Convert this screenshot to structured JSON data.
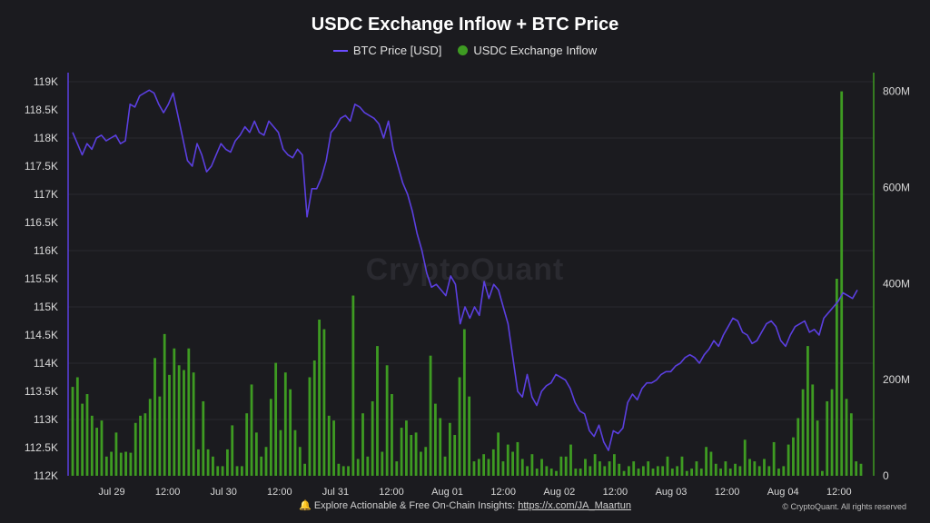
{
  "title": "USDC Exchange Inflow + BTC Price",
  "legend": {
    "line_label": "BTC Price [USD]",
    "bar_label": "USDC Exchange Inflow"
  },
  "watermark": "CryptoQuant",
  "footer": {
    "prefix": "🔔 Explore Actionable & Free On-Chain Insights: ",
    "link": "https://x.com/JA_Maartun"
  },
  "copyright": "© CryptoQuant. All rights reserved",
  "colors": {
    "price": "#5b3fe0",
    "inflow": "#3e9b22",
    "background": "#1b1b1f",
    "grid": "#2a2a2f"
  },
  "chart_data": {
    "type": "bar+line",
    "x_ticks": [
      "Jul 29",
      "12:00",
      "Jul 30",
      "12:00",
      "Jul 31",
      "12:00",
      "Aug 01",
      "12:00",
      "Aug 02",
      "12:00",
      "Aug 03",
      "12:00",
      "Aug 04",
      "12:00"
    ],
    "x_range_hours": [
      0,
      139
    ],
    "left_axis": {
      "label": "BTC Price [USD]",
      "ylim": [
        112000,
        119000
      ],
      "ticks": [
        "112K",
        "112.5K",
        "113K",
        "113.5K",
        "114K",
        "114.5K",
        "115K",
        "115.5K",
        "116K",
        "116.5K",
        "117K",
        "117.5K",
        "118K",
        "118.5K",
        "119K"
      ]
    },
    "right_axis": {
      "label": "USDC Exchange Inflow",
      "ylim": [
        0,
        820000000
      ],
      "ticks": [
        "0",
        "200M",
        "400M",
        "600M",
        "800M"
      ]
    },
    "series": [
      {
        "name": "BTC Price [USD]",
        "type": "line",
        "values": [
          118100,
          117900,
          117700,
          117900,
          117800,
          118000,
          118050,
          117950,
          118000,
          118050,
          117900,
          117950,
          118600,
          118550,
          118750,
          118800,
          118850,
          118800,
          118600,
          118450,
          118600,
          118800,
          118400,
          118000,
          117600,
          117500,
          117900,
          117700,
          117400,
          117500,
          117700,
          117900,
          117800,
          117750,
          117950,
          118050,
          118200,
          118100,
          118300,
          118100,
          118050,
          118300,
          118200,
          118100,
          117800,
          117700,
          117650,
          117800,
          117700,
          116600,
          117100,
          117100,
          117300,
          117600,
          118100,
          118200,
          118350,
          118400,
          118300,
          118600,
          118550,
          118450,
          118400,
          118350,
          118250,
          118000,
          118300,
          117800,
          117500,
          117200,
          117000,
          116700,
          116300,
          116000,
          115600,
          115350,
          115400,
          115300,
          115200,
          115550,
          115400,
          114700,
          115000,
          114800,
          115000,
          114850,
          115450,
          115150,
          115400,
          115300,
          115000,
          114700,
          114100,
          113500,
          113400,
          113800,
          113400,
          113250,
          113500,
          113600,
          113650,
          113800,
          113750,
          113700,
          113550,
          113300,
          113150,
          113100,
          112800,
          112700,
          112900,
          112600,
          112450,
          112800,
          112750,
          112850,
          113300,
          113450,
          113350,
          113550,
          113650,
          113650,
          113700,
          113800,
          113850,
          113850,
          113950,
          114000,
          114100,
          114150,
          114100,
          114000,
          114150,
          114250,
          114400,
          114300,
          114500,
          114650,
          114800,
          114750,
          114550,
          114500,
          114350,
          114400,
          114550,
          114700,
          114750,
          114650,
          114400,
          114300,
          114500,
          114650,
          114700,
          114750,
          114550,
          114600,
          114500,
          114800,
          114900,
          115000,
          115100,
          115250,
          115200,
          115150,
          115300
        ]
      },
      {
        "name": "USDC Exchange Inflow",
        "type": "bar",
        "values": [
          185,
          205,
          150,
          170,
          125,
          100,
          115,
          40,
          50,
          90,
          48,
          50,
          48,
          110,
          125,
          130,
          160,
          245,
          165,
          295,
          210,
          265,
          230,
          220,
          265,
          215,
          55,
          155,
          55,
          40,
          20,
          20,
          55,
          105,
          20,
          20,
          130,
          190,
          90,
          40,
          60,
          160,
          235,
          95,
          215,
          180,
          95,
          60,
          25,
          205,
          240,
          325,
          305,
          125,
          115,
          25,
          20,
          20,
          375,
          35,
          130,
          40,
          155,
          270,
          50,
          230,
          170,
          30,
          100,
          115,
          85,
          90,
          50,
          60,
          250,
          150,
          120,
          40,
          110,
          85,
          205,
          305,
          165,
          30,
          35,
          45,
          35,
          55,
          90,
          30,
          65,
          50,
          70,
          35,
          20,
          45,
          15,
          35,
          20,
          15,
          10,
          40,
          40,
          65,
          15,
          15,
          35,
          20,
          45,
          30,
          20,
          30,
          45,
          25,
          10,
          20,
          30,
          15,
          20,
          30,
          15,
          20,
          20,
          40,
          15,
          20,
          40,
          10,
          15,
          30,
          15,
          60,
          50,
          25,
          15,
          30,
          15,
          25,
          20,
          75,
          35,
          30,
          20,
          35,
          20,
          70,
          15,
          20,
          65,
          80,
          120,
          180,
          270,
          190,
          115,
          10,
          155,
          180,
          410,
          800,
          160,
          130,
          30,
          25
        ]
      }
    ]
  }
}
